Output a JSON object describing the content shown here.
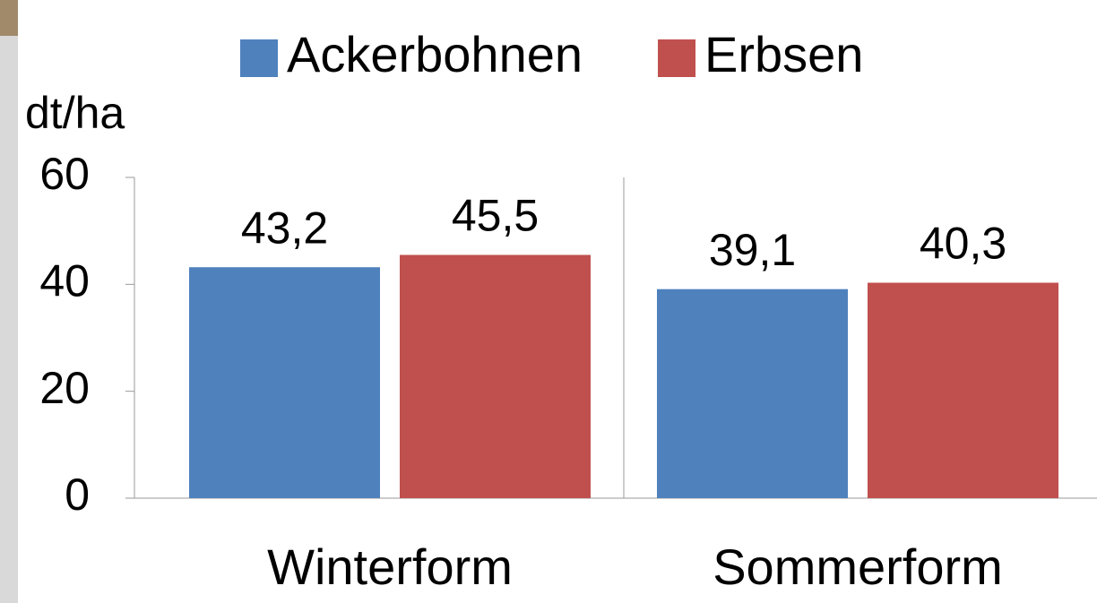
{
  "chart_data": {
    "type": "bar",
    "y_label": "dt/ha",
    "categories": [
      "Winterform",
      "Sommerform"
    ],
    "series": [
      {
        "name": "Ackerbohnen",
        "color": "#4f81bd",
        "values": [
          43.2,
          39.1
        ],
        "value_labels": [
          "43,2",
          "39,1"
        ]
      },
      {
        "name": "Erbsen",
        "color": "#c0504d",
        "values": [
          45.5,
          40.3
        ],
        "value_labels": [
          "45,5",
          "40,3"
        ]
      }
    ],
    "ylim": [
      0,
      60
    ],
    "yticks": [
      0,
      20,
      40,
      60
    ]
  }
}
